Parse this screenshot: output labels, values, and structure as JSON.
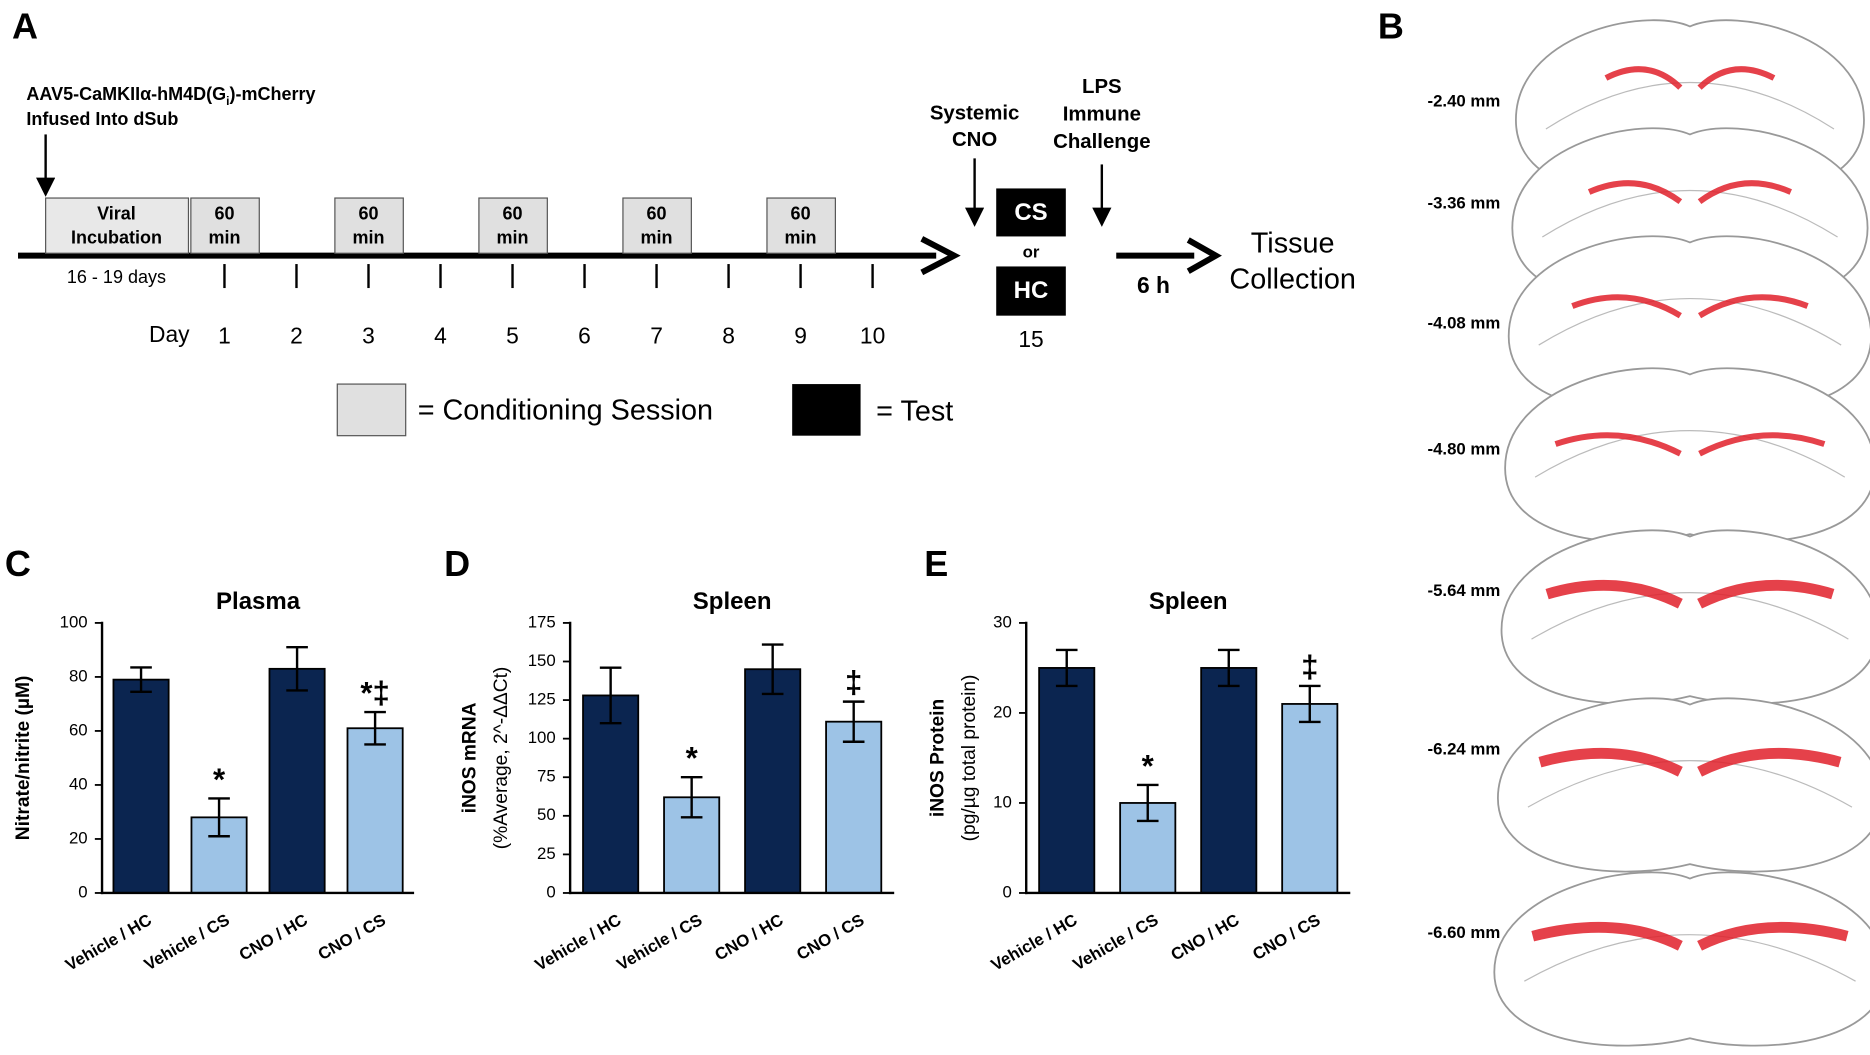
{
  "timeline": {
    "panel": "A",
    "virus_label": [
      "AAV5-CaMKIIα-hM4D(G",
      "i",
      ")-mCherry"
    ],
    "infusion_site": "Infused Into dSub",
    "incubation": [
      "Viral",
      "Incubation"
    ],
    "incubation_duration": "16 - 19 days",
    "sessions": [
      [
        "60",
        "min"
      ],
      [
        "60",
        "min"
      ],
      [
        "60",
        "min"
      ],
      [
        "60",
        "min"
      ],
      [
        "60",
        "min"
      ]
    ],
    "day_label": "Day",
    "days": [
      1,
      2,
      3,
      4,
      5,
      6,
      7,
      8,
      9,
      10
    ],
    "cno": [
      "Systemic",
      "CNO"
    ],
    "lps": [
      "LPS",
      "Immune",
      "Challenge"
    ],
    "test_cs": "CS",
    "or": "or",
    "test_hc": "HC",
    "test_day": 15,
    "delay": "6 h",
    "outcome": [
      "Tissue",
      "Collection"
    ],
    "legend": {
      "conditioning": "= Conditioning Session",
      "test": "= Test"
    }
  },
  "brain_sections": {
    "panel": "B",
    "levels": [
      "-2.40 mm",
      "-3.36 mm",
      "-4.08 mm",
      "-4.80 mm",
      "-5.64 mm",
      "-6.24 mm",
      "-6.60 mm"
    ]
  },
  "chart_data": [
    {
      "type": "bar",
      "panel": "C",
      "title": "Plasma",
      "ylabel": [
        "Nitrate/nitrite (µM)"
      ],
      "categories": [
        "Vehicle / HC",
        "Vehicle / CS",
        "CNO / HC",
        "CNO / CS"
      ],
      "values": [
        79,
        28,
        83,
        61
      ],
      "errors": [
        4.5,
        7,
        8,
        6
      ],
      "colors": [
        "#0b2550",
        "#9dc3e6",
        "#0b2550",
        "#9dc3e6"
      ],
      "annotations": [
        {
          "index": 1,
          "text": "*"
        },
        {
          "index": 3,
          "text": "*‡"
        }
      ],
      "ylim": [
        0,
        100
      ],
      "yticks": [
        0,
        20,
        40,
        60,
        80,
        100
      ]
    },
    {
      "type": "bar",
      "panel": "D",
      "title": "Spleen",
      "ylabel": [
        "iNOS mRNA",
        "(%Average, 2^-ΔΔCt)"
      ],
      "categories": [
        "Vehicle / HC",
        "Vehicle / CS",
        "CNO / HC",
        "CNO / CS"
      ],
      "values": [
        128,
        62,
        145,
        111
      ],
      "errors": [
        18,
        13,
        16,
        13
      ],
      "colors": [
        "#0b2550",
        "#9dc3e6",
        "#0b2550",
        "#9dc3e6"
      ],
      "annotations": [
        {
          "index": 1,
          "text": "*"
        },
        {
          "index": 3,
          "text": "‡"
        }
      ],
      "ylim": [
        0,
        175
      ],
      "yticks": [
        0,
        25,
        50,
        75,
        100,
        125,
        150,
        175
      ]
    },
    {
      "type": "bar",
      "panel": "E",
      "title": "Spleen",
      "ylabel": [
        "iNOS Protein",
        "(pg/µg total protein)"
      ],
      "categories": [
        "Vehicle / HC",
        "Vehicle / CS",
        "CNO / HC",
        "CNO / CS"
      ],
      "values": [
        25,
        10,
        25,
        21
      ],
      "errors": [
        2,
        2,
        2,
        2
      ],
      "colors": [
        "#0b2550",
        "#9dc3e6",
        "#0b2550",
        "#9dc3e6"
      ],
      "annotations": [
        {
          "index": 1,
          "text": "*"
        },
        {
          "index": 3,
          "text": "‡"
        }
      ],
      "ylim": [
        0,
        30
      ],
      "yticks": [
        0,
        10,
        20,
        30
      ]
    }
  ]
}
